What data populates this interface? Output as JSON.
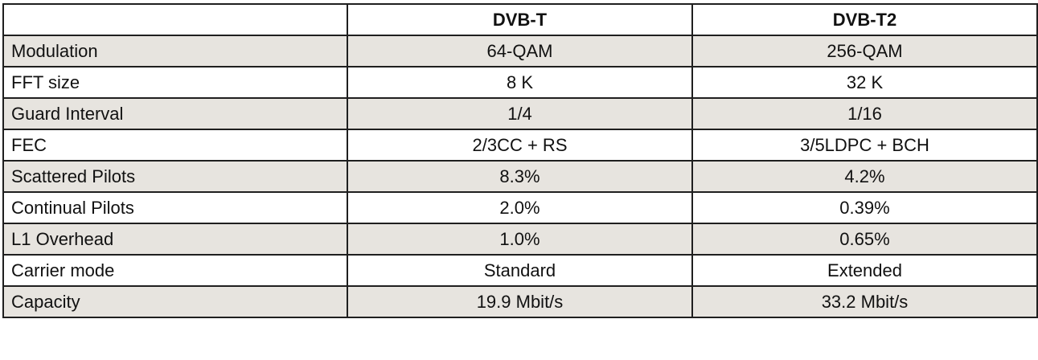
{
  "table": {
    "headers": [
      "",
      "DVB-T",
      "DVB-T2"
    ],
    "rows": [
      {
        "label": "Modulation",
        "dvbt": "64-QAM",
        "dvbt2": "256-QAM"
      },
      {
        "label": "FFT size",
        "dvbt": "8 K",
        "dvbt2": "32 K"
      },
      {
        "label": "Guard Interval",
        "dvbt": "1/4",
        "dvbt2": "1/16"
      },
      {
        "label": "FEC",
        "dvbt": "2/3CC + RS",
        "dvbt2": "3/5LDPC + BCH"
      },
      {
        "label": "Scattered Pilots",
        "dvbt": "8.3%",
        "dvbt2": "4.2%"
      },
      {
        "label": "Continual Pilots",
        "dvbt": "2.0%",
        "dvbt2": "0.39%"
      },
      {
        "label": "L1 Overhead",
        "dvbt": "1.0%",
        "dvbt2": "0.65%"
      },
      {
        "label": "Carrier mode",
        "dvbt": "Standard",
        "dvbt2": "Extended"
      },
      {
        "label": "Capacity",
        "dvbt": "19.9 Mbit/s",
        "dvbt2": "33.2 Mbit/s"
      }
    ]
  },
  "colors": {
    "shaded_row": "#e7e4df",
    "plain_row": "#ffffff",
    "border": "#1f1f1f"
  }
}
